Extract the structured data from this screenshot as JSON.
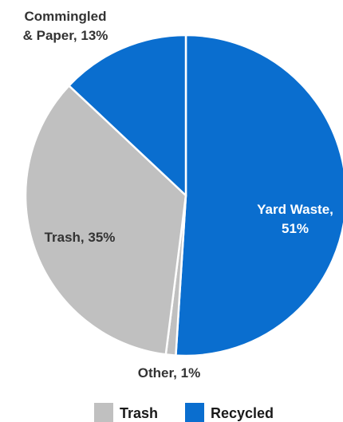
{
  "chart_data": {
    "type": "pie",
    "title": "",
    "slices": [
      {
        "label": "Yard Waste",
        "value": 51,
        "category": "Recycled",
        "label_lines": [
          "Yard Waste,",
          "51%"
        ]
      },
      {
        "label": "Other",
        "value": 1,
        "category": "Trash",
        "label_lines": [
          "Other, 1%"
        ]
      },
      {
        "label": "Trash",
        "value": 35,
        "category": "Trash",
        "label_lines": [
          "Trash, 35%"
        ]
      },
      {
        "label": "Commingled & Paper",
        "value": 13,
        "category": "Recycled",
        "label_lines": [
          "Commingled",
          "& Paper, 13%"
        ]
      }
    ],
    "legend": {
      "position": "bottom",
      "items": [
        {
          "label": "Trash",
          "color": "#c0c0c0"
        },
        {
          "label": "Recycled",
          "color": "#0a6ecf"
        }
      ]
    },
    "colors": {
      "Recycled": "#0a6ecf",
      "Trash": "#c0c0c0"
    }
  }
}
